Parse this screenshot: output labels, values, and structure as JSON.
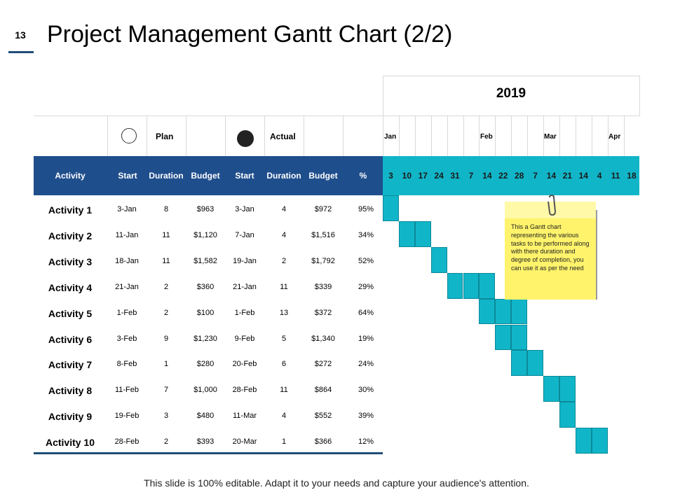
{
  "slide_number": "13",
  "title": "Project Management Gantt Chart (2/2)",
  "year": "2019",
  "legend": {
    "plan": "Plan",
    "actual": "Actual"
  },
  "months": [
    "Jan",
    "Feb",
    "Mar",
    "Apr"
  ],
  "columns": [
    "Activity",
    "Start",
    "Duration",
    "Budget",
    "Start",
    "Duration",
    "Budget",
    "%"
  ],
  "weeks": [
    "3",
    "10",
    "17",
    "24",
    "31",
    "7",
    "14",
    "22",
    "28",
    "7",
    "14",
    "21",
    "14",
    "4",
    "11",
    "18"
  ],
  "activities": [
    {
      "name": "Activity 1",
      "plan_start": "3-Jan",
      "plan_duration": "8",
      "plan_budget": "$963",
      "actual_start": "3-Jan",
      "actual_duration": "4",
      "actual_budget": "$972",
      "percent": "95%"
    },
    {
      "name": "Activity 2",
      "plan_start": "11-Jan",
      "plan_duration": "11",
      "plan_budget": "$1,120",
      "actual_start": "7-Jan",
      "actual_duration": "4",
      "actual_budget": "$1,516",
      "percent": "34%"
    },
    {
      "name": "Activity 3",
      "plan_start": "18-Jan",
      "plan_duration": "11",
      "plan_budget": "$1,582",
      "actual_start": "19-Jan",
      "actual_duration": "2",
      "actual_budget": "$1,792",
      "percent": "52%"
    },
    {
      "name": "Activity 4",
      "plan_start": "21-Jan",
      "plan_duration": "2",
      "plan_budget": "$360",
      "actual_start": "21-Jan",
      "actual_duration": "11",
      "actual_budget": "$339",
      "percent": "29%"
    },
    {
      "name": "Activity 5",
      "plan_start": "1-Feb",
      "plan_duration": "2",
      "plan_budget": "$100",
      "actual_start": "1-Feb",
      "actual_duration": "13",
      "actual_budget": "$372",
      "percent": "64%"
    },
    {
      "name": "Activity 6",
      "plan_start": "3-Feb",
      "plan_duration": "9",
      "plan_budget": "$1,230",
      "actual_start": "9-Feb",
      "actual_duration": "5",
      "actual_budget": "$1,340",
      "percent": "19%"
    },
    {
      "name": "Activity 7",
      "plan_start": "8-Feb",
      "plan_duration": "1",
      "plan_budget": "$280",
      "actual_start": "20-Feb",
      "actual_duration": "6",
      "actual_budget": "$272",
      "percent": "24%"
    },
    {
      "name": "Activity 8",
      "plan_start": "11-Feb",
      "plan_duration": "7",
      "plan_budget": "$1,000",
      "actual_start": "28-Feb",
      "actual_duration": "11",
      "actual_budget": "$864",
      "percent": "30%"
    },
    {
      "name": "Activity 9",
      "plan_start": "19-Feb",
      "plan_duration": "3",
      "plan_budget": "$480",
      "actual_start": "11-Mar",
      "actual_duration": "4",
      "actual_budget": "$552",
      "percent": "39%"
    },
    {
      "name": "Activity 10",
      "plan_start": "28-Feb",
      "plan_duration": "2",
      "plan_budget": "$393",
      "actual_start": "20-Mar",
      "actual_duration": "1",
      "actual_budget": "$366",
      "percent": "12%"
    }
  ],
  "chart_data": {
    "type": "gantt",
    "title": "Project Management Gantt Chart (2/2)",
    "x_axis_year": "2019",
    "x_categories": [
      "3",
      "10",
      "17",
      "24",
      "31",
      "7",
      "14",
      "22",
      "28",
      "7",
      "14",
      "21",
      "14",
      "4",
      "11",
      "18"
    ],
    "bars": [
      {
        "activity": "Activity 1",
        "start_week_index": 0,
        "span_weeks": 1
      },
      {
        "activity": "Activity 2",
        "start_week_index": 1,
        "span_weeks": 2
      },
      {
        "activity": "Activity 3",
        "start_week_index": 3,
        "span_weeks": 1
      },
      {
        "activity": "Activity 4",
        "start_week_index": 4,
        "span_weeks": 3
      },
      {
        "activity": "Activity 5",
        "start_week_index": 6,
        "span_weeks": 3
      },
      {
        "activity": "Activity 6",
        "start_week_index": 7,
        "span_weeks": 2
      },
      {
        "activity": "Activity 7",
        "start_week_index": 8,
        "span_weeks": 2
      },
      {
        "activity": "Activity 8",
        "start_week_index": 10,
        "span_weeks": 2
      },
      {
        "activity": "Activity 9",
        "start_week_index": 11,
        "span_weeks": 1
      },
      {
        "activity": "Activity 10",
        "start_week_index": 12,
        "span_weeks": 2
      }
    ],
    "bar_color": "#11b5c8"
  },
  "note": "This a Gantt chart representing the various tasks to be performed along with there duration and degree of completion, you can use it as per the need",
  "footer": "This slide is 100% editable. Adapt it to your needs and capture your audience's attention.",
  "colors": {
    "header_band": "#1f4e8c",
    "week_band": "#11b5c8",
    "note": "#fff36b"
  }
}
